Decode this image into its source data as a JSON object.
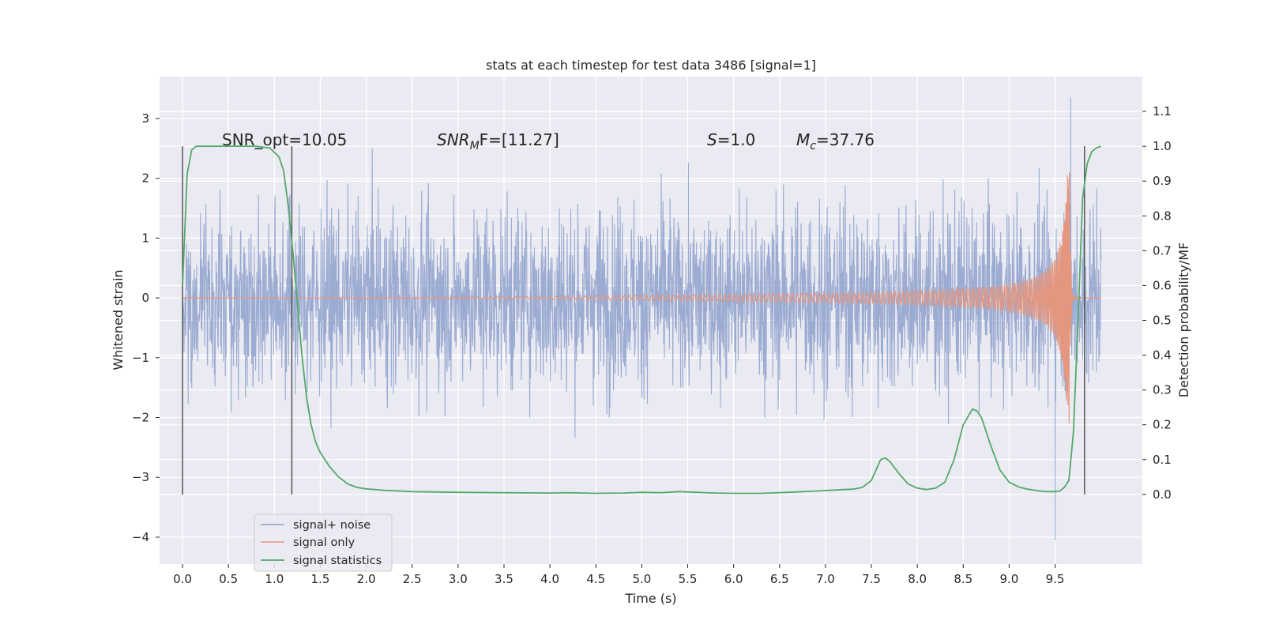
{
  "chart_data": {
    "type": "line",
    "title": "stats at each timestep for test data 3486 [signal=1]",
    "xlabel": "Time (s)",
    "ylabel": "Whitened strain",
    "y2label": "Detection probability/MF",
    "xlim": [
      -0.25,
      10.45
    ],
    "ylim": [
      -4.45,
      3.7
    ],
    "y2lim": [
      -0.2,
      1.2
    ],
    "x_ticks": [
      "0.0",
      "0.5",
      "1.0",
      "1.5",
      "2.0",
      "2.5",
      "3.0",
      "3.5",
      "4.0",
      "4.5",
      "5.0",
      "5.5",
      "6.0",
      "6.5",
      "7.0",
      "7.5",
      "8.0",
      "8.5",
      "9.0",
      "9.5"
    ],
    "y_ticks": [
      "3",
      "2",
      "1",
      "0",
      "−1",
      "−2",
      "−3",
      "−4"
    ],
    "y2_ticks": [
      "1.1",
      "1.0",
      "0.9",
      "0.8",
      "0.7",
      "0.6",
      "0.5",
      "0.4",
      "0.3",
      "0.2",
      "0.1",
      "0.0"
    ],
    "grid": true,
    "legend_position": "lower-left",
    "annotations": {
      "snr_opt": "SNR_opt=10.05",
      "snr_mf_label": "SNR",
      "snr_mf_sub": "M",
      "snr_mf_value": "F=[11.27]",
      "s_label": "S",
      "s_value": "=1.0",
      "mc_label": "M",
      "mc_sub": "c",
      "mc_value": "=37.76"
    },
    "vertical_markers_x": [
      0.0,
      1.19,
      9.82
    ],
    "series": [
      {
        "name": "signal+ noise",
        "color": "#8da0cb",
        "description_stats": {
          "x_range": [
            0.0,
            10.0
          ],
          "typical_envelope": [
            -1.6,
            1.7
          ],
          "max": 3.35,
          "min": -4.05,
          "max_at_x": 9.67,
          "min_at_x": 9.5
        }
      },
      {
        "name": "signal only",
        "color": "#e5967e",
        "chirp": {
          "x_range": [
            0.0,
            10.0
          ],
          "merger_x": 9.66,
          "peak_amplitude": 2.1,
          "amplitude_at_7s": 0.03,
          "amplitude_at_9s": 0.3
        }
      },
      {
        "name": "signal statistics",
        "color": "#55a868",
        "axis": "right",
        "x": [
          0.0,
          0.05,
          0.1,
          0.15,
          0.2,
          0.3,
          0.5,
          0.8,
          0.95,
          1.05,
          1.1,
          1.15,
          1.2,
          1.25,
          1.3,
          1.35,
          1.4,
          1.45,
          1.5,
          1.6,
          1.7,
          1.8,
          1.9,
          2.0,
          2.2,
          2.5,
          3.0,
          3.5,
          4.0,
          4.2,
          4.5,
          4.8,
          5.0,
          5.2,
          5.4,
          5.6,
          5.8,
          6.0,
          6.3,
          6.6,
          6.9,
          7.2,
          7.3,
          7.4,
          7.5,
          7.6,
          7.65,
          7.7,
          7.8,
          7.9,
          8.0,
          8.1,
          8.2,
          8.3,
          8.4,
          8.5,
          8.6,
          8.65,
          8.7,
          8.8,
          8.9,
          9.0,
          9.1,
          9.2,
          9.3,
          9.4,
          9.5,
          9.55,
          9.6,
          9.65,
          9.7,
          9.75,
          9.8,
          9.85,
          9.9,
          9.95,
          10.0
        ],
        "values": [
          0.6,
          0.92,
          0.99,
          1.0,
          1.0,
          1.0,
          1.0,
          1.0,
          0.995,
          0.97,
          0.93,
          0.83,
          0.7,
          0.55,
          0.4,
          0.28,
          0.2,
          0.15,
          0.12,
          0.08,
          0.05,
          0.03,
          0.02,
          0.016,
          0.012,
          0.008,
          0.006,
          0.005,
          0.004,
          0.005,
          0.003,
          0.004,
          0.006,
          0.005,
          0.008,
          0.006,
          0.004,
          0.003,
          0.003,
          0.006,
          0.01,
          0.014,
          0.015,
          0.02,
          0.04,
          0.1,
          0.105,
          0.095,
          0.06,
          0.03,
          0.018,
          0.014,
          0.018,
          0.035,
          0.1,
          0.2,
          0.245,
          0.24,
          0.22,
          0.14,
          0.07,
          0.035,
          0.022,
          0.015,
          0.011,
          0.008,
          0.008,
          0.01,
          0.02,
          0.04,
          0.18,
          0.5,
          0.85,
          0.95,
          0.985,
          0.995,
          1.0
        ]
      }
    ]
  }
}
